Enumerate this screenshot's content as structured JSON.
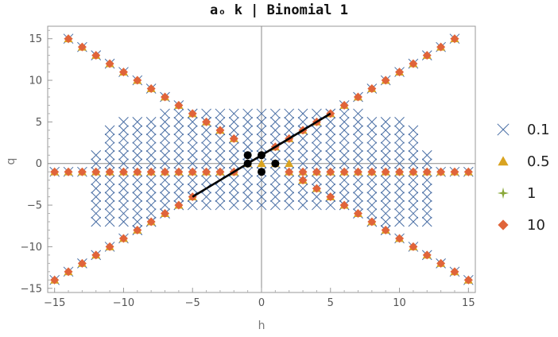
{
  "chart_data": {
    "type": "scatter",
    "title": "aₒ k | Binomial 1",
    "xlabel": "h",
    "ylabel": "q",
    "xlim": [
      -15.5,
      15.5
    ],
    "ylim": [
      -15.5,
      16.5
    ],
    "x_ticks": [
      -15,
      -10,
      -5,
      0,
      5,
      10,
      15
    ],
    "y_ticks": [
      -15,
      -10,
      -5,
      0,
      5,
      10,
      15
    ],
    "x_tick_labels": [
      "−15",
      "−10",
      "−5",
      "0",
      "5",
      "10",
      "15"
    ],
    "y_tick_labels": [
      "−15",
      "−10",
      "−5",
      "0",
      "5",
      "10",
      "15"
    ],
    "grid": false,
    "legend_position": "right",
    "series": [
      {
        "name": "0.1",
        "marker": "cross",
        "color": "#4a6fa5",
        "points": [
          [
            -14,
            15
          ],
          [
            -13,
            14
          ],
          [
            -12,
            13
          ],
          [
            -11,
            12
          ],
          [
            -10,
            11
          ],
          [
            -9,
            10
          ],
          [
            -8,
            9
          ],
          [
            -7,
            8
          ],
          [
            -6,
            7
          ],
          [
            -5,
            6
          ],
          [
            -4,
            5
          ],
          [
            -3,
            4
          ],
          [
            -2,
            3
          ],
          [
            -1,
            2
          ],
          [
            14,
            15
          ],
          [
            13,
            14
          ],
          [
            12,
            13
          ],
          [
            11,
            12
          ],
          [
            10,
            11
          ],
          [
            9,
            10
          ],
          [
            8,
            9
          ],
          [
            7,
            8
          ],
          [
            6,
            7
          ],
          [
            5,
            6
          ],
          [
            4,
            5
          ],
          [
            3,
            4
          ],
          [
            2,
            3
          ],
          [
            1,
            2
          ],
          [
            -15,
            -14
          ],
          [
            -14,
            -13
          ],
          [
            -13,
            -12
          ],
          [
            -12,
            -11
          ],
          [
            -11,
            -10
          ],
          [
            -10,
            -9
          ],
          [
            -9,
            -8
          ],
          [
            -8,
            -7
          ],
          [
            -7,
            -6
          ],
          [
            -6,
            -5
          ],
          [
            -5,
            -4
          ],
          [
            15,
            -14
          ],
          [
            14,
            -13
          ],
          [
            13,
            -12
          ],
          [
            12,
            -11
          ],
          [
            11,
            -10
          ],
          [
            10,
            -9
          ],
          [
            9,
            -8
          ],
          [
            8,
            -7
          ],
          [
            7,
            -6
          ],
          [
            6,
            -5
          ],
          [
            5,
            -4
          ],
          [
            -15,
            -1
          ],
          [
            -14,
            -1
          ],
          [
            -13,
            -1
          ],
          [
            15,
            -1
          ],
          [
            14,
            -1
          ],
          [
            13,
            -1
          ]
        ],
        "block_columns": [
          [
            -12,
            -7,
            1
          ],
          [
            -11,
            -7,
            4
          ],
          [
            -10,
            -7,
            5
          ],
          [
            -9,
            -8,
            5
          ],
          [
            -8,
            -7,
            5
          ],
          [
            -7,
            -6,
            6
          ],
          [
            -6,
            -5,
            6
          ],
          [
            -5,
            -5,
            6
          ],
          [
            -4,
            -5,
            6
          ],
          [
            -3,
            -5,
            6
          ],
          [
            -2,
            -5,
            6
          ],
          [
            -1,
            -5,
            6
          ],
          [
            0,
            -5,
            6
          ],
          [
            1,
            -5,
            6
          ],
          [
            2,
            -5,
            6
          ],
          [
            3,
            -5,
            6
          ],
          [
            4,
            -5,
            6
          ],
          [
            5,
            -5,
            6
          ],
          [
            6,
            -5,
            6
          ],
          [
            7,
            -6,
            6
          ],
          [
            8,
            -7,
            5
          ],
          [
            9,
            -8,
            5
          ],
          [
            10,
            -7,
            5
          ],
          [
            11,
            -7,
            4
          ],
          [
            12,
            -7,
            1
          ]
        ]
      },
      {
        "name": "0.5",
        "marker": "triangle",
        "color": "#d9a320",
        "points": [
          [
            -14,
            15
          ],
          [
            -13,
            14
          ],
          [
            -12,
            13
          ],
          [
            -11,
            12
          ],
          [
            -10,
            11
          ],
          [
            -9,
            10
          ],
          [
            -8,
            9
          ],
          [
            -7,
            8
          ],
          [
            -6,
            7
          ],
          [
            -5,
            6
          ],
          [
            -4,
            5
          ],
          [
            -3,
            4
          ],
          [
            -2,
            3
          ],
          [
            14,
            15
          ],
          [
            13,
            14
          ],
          [
            12,
            13
          ],
          [
            11,
            12
          ],
          [
            10,
            11
          ],
          [
            9,
            10
          ],
          [
            8,
            9
          ],
          [
            7,
            8
          ],
          [
            6,
            7
          ],
          [
            5,
            6
          ],
          [
            4,
            5
          ],
          [
            3,
            4
          ],
          [
            2,
            3
          ],
          [
            1,
            2
          ],
          [
            -15,
            -14
          ],
          [
            -14,
            -13
          ],
          [
            -13,
            -12
          ],
          [
            -12,
            -11
          ],
          [
            -11,
            -10
          ],
          [
            -10,
            -9
          ],
          [
            -9,
            -8
          ],
          [
            -8,
            -7
          ],
          [
            -7,
            -6
          ],
          [
            -6,
            -5
          ],
          [
            -5,
            -4
          ],
          [
            15,
            -14
          ],
          [
            14,
            -13
          ],
          [
            13,
            -12
          ],
          [
            12,
            -11
          ],
          [
            11,
            -10
          ],
          [
            10,
            -9
          ],
          [
            9,
            -8
          ],
          [
            8,
            -7
          ],
          [
            7,
            -6
          ],
          [
            6,
            -5
          ],
          [
            5,
            -4
          ],
          [
            4,
            -3
          ],
          [
            3,
            -2
          ],
          [
            -2,
            -1
          ],
          [
            -1,
            0
          ],
          [
            0,
            0
          ],
          [
            1,
            0
          ],
          [
            2,
            0
          ],
          [
            3,
            -2
          ],
          [
            -15,
            -1
          ],
          [
            -14,
            -1
          ],
          [
            -13,
            -1
          ],
          [
            -12,
            -1
          ],
          [
            -11,
            -1
          ],
          [
            -10,
            -1
          ],
          [
            -9,
            -1
          ],
          [
            -8,
            -1
          ],
          [
            -7,
            -1
          ],
          [
            -6,
            -1
          ],
          [
            -5,
            -1
          ],
          [
            -4,
            -1
          ],
          [
            -3,
            -1
          ],
          [
            -2,
            -1
          ],
          [
            2,
            -1
          ],
          [
            3,
            -1
          ],
          [
            4,
            -1
          ],
          [
            5,
            -1
          ],
          [
            6,
            -1
          ],
          [
            7,
            -1
          ],
          [
            8,
            -1
          ],
          [
            9,
            -1
          ],
          [
            10,
            -1
          ],
          [
            11,
            -1
          ],
          [
            12,
            -1
          ],
          [
            13,
            -1
          ],
          [
            14,
            -1
          ],
          [
            15,
            -1
          ]
        ]
      },
      {
        "name": "1",
        "marker": "star",
        "color": "#8aa83a",
        "points": [
          [
            -14,
            15
          ],
          [
            14,
            15
          ],
          [
            -15,
            -14
          ],
          [
            15,
            -14
          ],
          [
            -15,
            -1
          ],
          [
            15,
            -1
          ],
          [
            -1,
            0
          ],
          [
            1,
            0
          ]
        ]
      },
      {
        "name": "10",
        "marker": "diamond",
        "color": "#e0643a",
        "points": [
          [
            -14,
            15
          ],
          [
            -13,
            14
          ],
          [
            -12,
            13
          ],
          [
            -11,
            12
          ],
          [
            -10,
            11
          ],
          [
            -9,
            10
          ],
          [
            -8,
            9
          ],
          [
            -7,
            8
          ],
          [
            -6,
            7
          ],
          [
            -5,
            6
          ],
          [
            -4,
            5
          ],
          [
            -3,
            4
          ],
          [
            -2,
            3
          ],
          [
            14,
            15
          ],
          [
            13,
            14
          ],
          [
            12,
            13
          ],
          [
            11,
            12
          ],
          [
            10,
            11
          ],
          [
            9,
            10
          ],
          [
            8,
            9
          ],
          [
            7,
            8
          ],
          [
            6,
            7
          ],
          [
            5,
            6
          ],
          [
            4,
            5
          ],
          [
            3,
            4
          ],
          [
            2,
            3
          ],
          [
            1,
            2
          ],
          [
            -15,
            -14
          ],
          [
            -14,
            -13
          ],
          [
            -13,
            -12
          ],
          [
            -12,
            -11
          ],
          [
            -11,
            -10
          ],
          [
            -10,
            -9
          ],
          [
            -9,
            -8
          ],
          [
            -8,
            -7
          ],
          [
            -7,
            -6
          ],
          [
            -6,
            -5
          ],
          [
            -5,
            -4
          ],
          [
            15,
            -14
          ],
          [
            14,
            -13
          ],
          [
            13,
            -12
          ],
          [
            12,
            -11
          ],
          [
            11,
            -10
          ],
          [
            10,
            -9
          ],
          [
            9,
            -8
          ],
          [
            8,
            -7
          ],
          [
            7,
            -6
          ],
          [
            6,
            -5
          ],
          [
            5,
            -4
          ],
          [
            4,
            -3
          ],
          [
            3,
            -2
          ],
          [
            2,
            -1
          ],
          [
            -15,
            -1
          ],
          [
            -14,
            -1
          ],
          [
            -13,
            -1
          ],
          [
            -12,
            -1
          ],
          [
            -11,
            -1
          ],
          [
            -10,
            -1
          ],
          [
            -9,
            -1
          ],
          [
            -8,
            -1
          ],
          [
            -7,
            -1
          ],
          [
            -6,
            -1
          ],
          [
            -5,
            -1
          ],
          [
            -4,
            -1
          ],
          [
            -3,
            -1
          ],
          [
            -2,
            -1
          ],
          [
            3,
            -1
          ],
          [
            4,
            -1
          ],
          [
            5,
            -1
          ],
          [
            6,
            -1
          ],
          [
            7,
            -1
          ],
          [
            8,
            -1
          ],
          [
            9,
            -1
          ],
          [
            10,
            -1
          ],
          [
            11,
            -1
          ],
          [
            12,
            -1
          ],
          [
            13,
            -1
          ],
          [
            14,
            -1
          ],
          [
            15,
            -1
          ]
        ]
      }
    ],
    "black_points": [
      [
        -1,
        1
      ],
      [
        -1,
        0
      ],
      [
        0,
        1
      ],
      [
        0,
        -1
      ],
      [
        1,
        0
      ]
    ],
    "fit_line": {
      "x0": -5,
      "y0": -4,
      "x1": 5,
      "y1": 6,
      "color": "#000000"
    }
  }
}
